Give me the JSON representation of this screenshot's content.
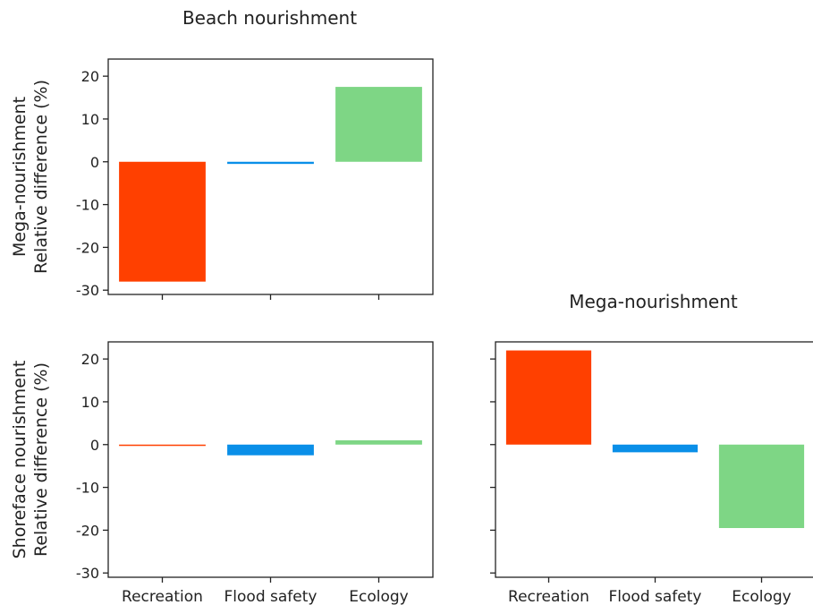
{
  "chart_data": [
    {
      "type": "bar",
      "panel": "top-left",
      "title": "Beach nourishment",
      "ylabel_lines": [
        "Mega-nourishment",
        "Relative difference (%)"
      ],
      "categories": [
        "Recreation",
        "Flood safety",
        "Ecology"
      ],
      "values": [
        -28,
        -0.5,
        17.5
      ],
      "colors": [
        "#ff4000",
        "#0a8fe8",
        "#7ed685"
      ],
      "ylim": [
        -31,
        24
      ],
      "yticks": [
        20,
        10,
        0,
        -10,
        -20,
        -30
      ],
      "show_xticklabels": false
    },
    {
      "type": "bar",
      "panel": "bottom-left",
      "title": "",
      "ylabel_lines": [
        "Shoreface nourishment",
        "Relative difference (%)"
      ],
      "categories": [
        "Recreation",
        "Flood safety",
        "Ecology"
      ],
      "values": [
        0,
        -2.5,
        1
      ],
      "colors": [
        "#ff4000",
        "#0a8fe8",
        "#7ed685"
      ],
      "ylim": [
        -31,
        24
      ],
      "yticks": [
        20,
        10,
        0,
        -10,
        -20,
        -30
      ],
      "show_xticklabels": true
    },
    {
      "type": "bar",
      "panel": "bottom-right",
      "title": "Mega-nourishment",
      "ylabel_lines": [],
      "categories": [
        "Recreation",
        "Flood safety",
        "Ecology"
      ],
      "values": [
        22,
        -1.8,
        -19.5
      ],
      "colors": [
        "#ff4000",
        "#0a8fe8",
        "#7ed685"
      ],
      "ylim": [
        -31,
        24
      ],
      "yticks": [
        20,
        10,
        0,
        -10,
        -20,
        -30
      ],
      "show_xticklabels": true,
      "show_yticklabels": false
    }
  ]
}
